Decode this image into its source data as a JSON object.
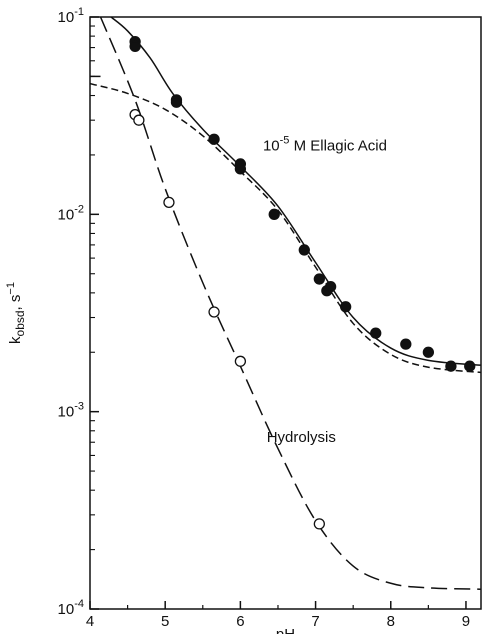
{
  "chart_data": {
    "type": "scatter",
    "title": "",
    "xlabel": "pH",
    "ylabel": "k",
    "ylabel_subscript": "obsd",
    "ylabel_unit": ", s",
    "ylabel_unit_exp": "−1",
    "xlim": [
      4,
      9.2
    ],
    "ylim": [
      0.0001,
      0.1
    ],
    "yscale": "log",
    "grid": false,
    "legend": "none",
    "x_ticks": [
      {
        "value": 4,
        "label": "4"
      },
      {
        "value": 5,
        "label": "5"
      },
      {
        "value": 6,
        "label": "6"
      },
      {
        "value": 7,
        "label": "7"
      },
      {
        "value": 8,
        "label": "8"
      },
      {
        "value": 9,
        "label": "9"
      }
    ],
    "y_ticks": [
      {
        "value": 0.1,
        "base": "10",
        "exp": "-1"
      },
      {
        "value": 0.01,
        "base": "10",
        "exp": "-2"
      },
      {
        "value": 0.001,
        "base": "10",
        "exp": "-3"
      },
      {
        "value": 0.0001,
        "base": "10",
        "exp": "-4"
      }
    ],
    "annotations": [
      {
        "id": "ellagic",
        "prefix": "10",
        "exp": "-5",
        "suffix": " M Ellagic Acid",
        "x": 6.3,
        "y": 0.021
      },
      {
        "id": "hydrolysis",
        "text": "Hydrolysis",
        "x": 6.35,
        "y": 0.0007
      }
    ],
    "series": [
      {
        "marker": "filled-circle",
        "points": [
          [
            4.6,
            0.075
          ],
          [
            4.6,
            0.071
          ],
          [
            5.15,
            0.038
          ],
          [
            5.15,
            0.037
          ],
          [
            5.65,
            0.024
          ],
          [
            6.0,
            0.018
          ],
          [
            6.0,
            0.017
          ],
          [
            6.45,
            0.01
          ],
          [
            6.85,
            0.0066
          ],
          [
            7.05,
            0.0047
          ],
          [
            7.15,
            0.0041
          ],
          [
            7.2,
            0.0043
          ],
          [
            7.4,
            0.0034
          ],
          [
            7.8,
            0.0025
          ],
          [
            8.2,
            0.0022
          ],
          [
            8.5,
            0.002
          ],
          [
            8.8,
            0.0017
          ],
          [
            9.05,
            0.0017
          ]
        ]
      },
      {
        "marker": "open-circle",
        "points": [
          [
            4.6,
            0.032
          ],
          [
            4.65,
            0.03
          ],
          [
            5.05,
            0.0115
          ],
          [
            5.65,
            0.0032
          ],
          [
            6.0,
            0.0018
          ],
          [
            7.05,
            0.00027
          ]
        ]
      },
      {
        "line": "solid",
        "points": [
          [
            4.28,
            0.1
          ],
          [
            4.5,
            0.085
          ],
          [
            4.8,
            0.062
          ],
          [
            5.1,
            0.041
          ],
          [
            5.5,
            0.027
          ],
          [
            6.0,
            0.0175
          ],
          [
            6.5,
            0.011
          ],
          [
            7.0,
            0.0057
          ],
          [
            7.5,
            0.003
          ],
          [
            8.0,
            0.0021
          ],
          [
            8.5,
            0.00182
          ],
          [
            9.2,
            0.00172
          ]
        ]
      },
      {
        "line": "short-dash",
        "points": [
          [
            4.0,
            0.046
          ],
          [
            4.5,
            0.041
          ],
          [
            5.0,
            0.034
          ],
          [
            5.5,
            0.025
          ],
          [
            6.0,
            0.0165
          ],
          [
            6.5,
            0.0105
          ],
          [
            7.0,
            0.0054
          ],
          [
            7.5,
            0.0028
          ],
          [
            8.0,
            0.00195
          ],
          [
            8.5,
            0.00168
          ],
          [
            9.2,
            0.00158
          ]
        ]
      },
      {
        "line": "long-dash",
        "points": [
          [
            4.14,
            0.1
          ],
          [
            4.6,
            0.038
          ],
          [
            5.0,
            0.0135
          ],
          [
            5.5,
            0.0045
          ],
          [
            6.0,
            0.0017
          ],
          [
            6.5,
            0.00065
          ],
          [
            7.0,
            0.00028
          ],
          [
            7.5,
            0.000165
          ],
          [
            8.0,
            0.000135
          ],
          [
            8.5,
            0.000128
          ],
          [
            9.2,
            0.000126
          ]
        ]
      },
      {
        "line": "long-dash-short",
        "points": [
          [
            4.0,
            0.05
          ],
          [
            4.14,
            0.05
          ]
        ]
      }
    ]
  }
}
